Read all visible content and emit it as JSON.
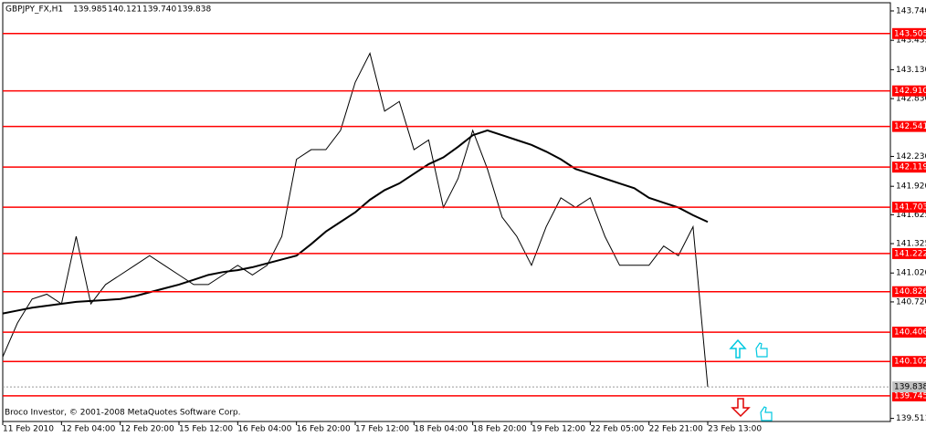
{
  "chart_data": {
    "type": "line",
    "header": {
      "symbol": "GBPJPY_FX,H1",
      "values": [
        139.985,
        140.121,
        139.74,
        139.838
      ],
      "value_labels": [
        "139.985",
        "140.121",
        "139.740",
        "139.838"
      ]
    },
    "footer": "Broco Investor, © 2001-2008 MetaQuotes Software Corp.",
    "categories": [
      "11 Feb 2010",
      null,
      null,
      null,
      "12 Feb 04:00",
      null,
      null,
      null,
      "12 Feb 20:00",
      null,
      null,
      null,
      "15 Feb 12:00",
      null,
      null,
      null,
      "16 Feb 04:00",
      null,
      null,
      null,
      "16 Feb 20:00",
      null,
      null,
      null,
      "17 Feb 12:00",
      null,
      null,
      null,
      "18 Feb 04:00",
      null,
      null,
      null,
      "18 Feb 20:00",
      null,
      null,
      null,
      "19 Feb 12:00",
      null,
      null,
      null,
      "22 Feb 05:00",
      null,
      null,
      null,
      "22 Feb 21:00",
      null,
      null,
      null,
      "23 Feb 13:00"
    ],
    "series": [
      {
        "color": "#000000",
        "values": [
          140.15,
          140.5,
          140.75,
          140.8,
          140.7,
          141.4,
          140.7,
          140.9,
          141.0,
          141.1,
          141.2,
          141.1,
          141.0,
          140.9,
          140.9,
          141.0,
          141.1,
          141.0,
          141.1,
          141.4,
          142.2,
          142.3,
          142.3,
          142.5,
          143.0,
          143.3,
          142.7,
          142.8,
          142.3,
          142.4,
          141.7,
          142.0,
          142.5,
          142.1,
          141.6,
          141.4,
          141.1,
          141.5,
          141.8,
          141.7,
          141.8,
          141.4,
          141.1,
          141.1,
          141.1,
          141.3,
          141.2,
          141.5,
          139.838
        ]
      },
      {
        "color": "#000000",
        "values": [
          140.6,
          140.63,
          140.66,
          140.68,
          140.7,
          140.72,
          140.73,
          140.74,
          140.75,
          140.78,
          140.82,
          140.86,
          140.9,
          140.95,
          141.0,
          141.03,
          141.05,
          141.08,
          141.12,
          141.16,
          141.2,
          141.32,
          141.45,
          141.55,
          141.65,
          141.78,
          141.88,
          141.95,
          142.05,
          142.15,
          142.22,
          142.33,
          142.45,
          142.5,
          142.45,
          142.4,
          142.35,
          142.28,
          142.2,
          142.1,
          142.05,
          142.0,
          141.95,
          141.9,
          141.8,
          141.75,
          141.7,
          141.62,
          141.55
        ]
      }
    ],
    "ylim": [
      139.479,
      143.825
    ],
    "yticks": [
      {
        "value": 143.74,
        "label": "143.740"
      },
      143.435,
      {
        "value": 143.13,
        "label": "143.130"
      },
      {
        "value": 142.83,
        "label": "142.830"
      },
      {
        "value": 142.23,
        "label": "142.230"
      },
      {
        "value": 141.92,
        "label": "141.920"
      },
      141.625,
      141.325,
      {
        "value": 141.02,
        "label": "141.020"
      },
      {
        "value": 140.72,
        "label": "140.720"
      },
      139.511
    ],
    "levels": {
      "color": "#ff0000",
      "values": [
        143.505,
        142.91,
        142.541,
        142.119,
        141.703,
        141.222,
        140.826,
        140.406,
        140.102,
        139.745
      ],
      "value_labels": [
        "143.505",
        "142.910",
        "142.541",
        "142.119",
        "141.703",
        "141.222",
        "140.826",
        "140.406",
        "140.102",
        "139.745"
      ]
    },
    "current_price": 139.838,
    "grid": false
  }
}
